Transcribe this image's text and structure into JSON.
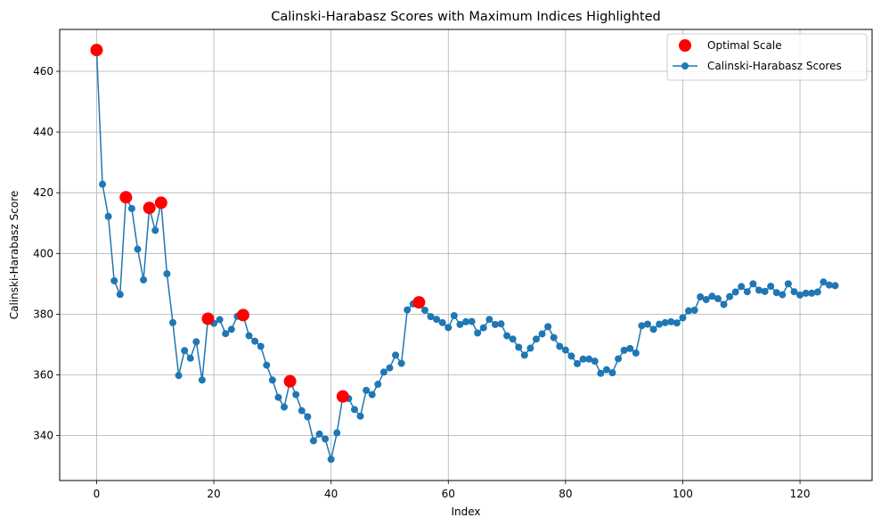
{
  "chart_data": {
    "type": "line",
    "title": "Calinski-Harabasz Scores with Maximum Indices Highlighted",
    "xlabel": "Index",
    "ylabel": "Calinski-Harabasz Score",
    "xlim": [
      -6.3,
      132.3
    ],
    "ylim": [
      325.2,
      473.8
    ],
    "xticks": [
      0,
      20,
      40,
      60,
      80,
      100,
      120
    ],
    "yticks": [
      340,
      360,
      380,
      400,
      420,
      440,
      460
    ],
    "grid": true,
    "legend_position": "top-right",
    "series": [
      {
        "name": "Calinski-Harabasz Scores",
        "color": "#1f77b4",
        "x": [
          0,
          1,
          2,
          3,
          4,
          5,
          6,
          7,
          8,
          9,
          10,
          11,
          12,
          13,
          14,
          15,
          16,
          17,
          18,
          19,
          20,
          21,
          22,
          23,
          24,
          25,
          26,
          27,
          28,
          29,
          30,
          31,
          32,
          33,
          34,
          35,
          36,
          37,
          38,
          39,
          40,
          41,
          42,
          43,
          44,
          45,
          46,
          47,
          48,
          49,
          50,
          51,
          52,
          53,
          54,
          55,
          56,
          57,
          58,
          59,
          60,
          61,
          62,
          63,
          64,
          65,
          66,
          67,
          68,
          69,
          70,
          71,
          72,
          73,
          74,
          75,
          76,
          77,
          78,
          79,
          80,
          81,
          82,
          83,
          84,
          85,
          86,
          87,
          88,
          89,
          90,
          91,
          92,
          93,
          94,
          95,
          96,
          97,
          98,
          99,
          100,
          101,
          102,
          103,
          104,
          105,
          106,
          107,
          108,
          109,
          110,
          111,
          112,
          113,
          114,
          115,
          116,
          117,
          118,
          119,
          120,
          121,
          122,
          123,
          124,
          125,
          126
        ],
        "values": [
          467.0,
          422.8,
          412.2,
          391.0,
          386.5,
          418.5,
          414.8,
          401.4,
          391.3,
          415.0,
          407.6,
          416.7,
          393.3,
          377.2,
          359.8,
          368.0,
          365.5,
          370.9,
          358.3,
          378.5,
          377.0,
          378.2,
          373.6,
          375.0,
          379.3,
          379.7,
          372.9,
          371.1,
          369.4,
          363.2,
          358.3,
          352.6,
          349.4,
          357.9,
          353.5,
          348.2,
          346.2,
          338.3,
          340.5,
          338.9,
          332.2,
          340.9,
          352.9,
          352.2,
          348.6,
          346.4,
          354.9,
          353.5,
          356.9,
          360.9,
          362.3,
          366.5,
          363.8,
          381.4,
          383.4,
          383.9,
          381.3,
          379.2,
          378.3,
          377.2,
          375.6,
          379.5,
          376.6,
          377.5,
          377.6,
          373.8,
          375.5,
          378.3,
          376.6,
          376.8,
          372.9,
          371.8,
          369.1,
          366.5,
          368.8,
          371.8,
          373.5,
          375.9,
          372.3,
          369.4,
          368.2,
          366.2,
          363.7,
          365.2,
          365.2,
          364.5,
          360.5,
          361.7,
          360.7,
          365.3,
          368.1,
          368.7,
          367.2,
          376.2,
          376.7,
          375.0,
          376.7,
          377.2,
          377.5,
          377.1,
          378.8,
          381.1,
          381.3,
          385.7,
          384.8,
          385.9,
          385.1,
          383.2,
          385.8,
          387.3,
          389.1,
          387.4,
          390.0,
          387.9,
          387.5,
          389.2,
          387.1,
          386.4,
          390.0,
          387.4,
          386.3,
          386.9,
          386.9,
          387.3,
          390.6,
          389.6,
          389.4
        ]
      },
      {
        "name": "Optimal Scale",
        "color": "#ff0000",
        "x": [
          0,
          5,
          9,
          11,
          19,
          25,
          33,
          42,
          55
        ],
        "values": [
          467.0,
          418.5,
          415.0,
          416.7,
          378.5,
          379.7,
          357.9,
          352.9,
          383.9
        ]
      }
    ]
  }
}
